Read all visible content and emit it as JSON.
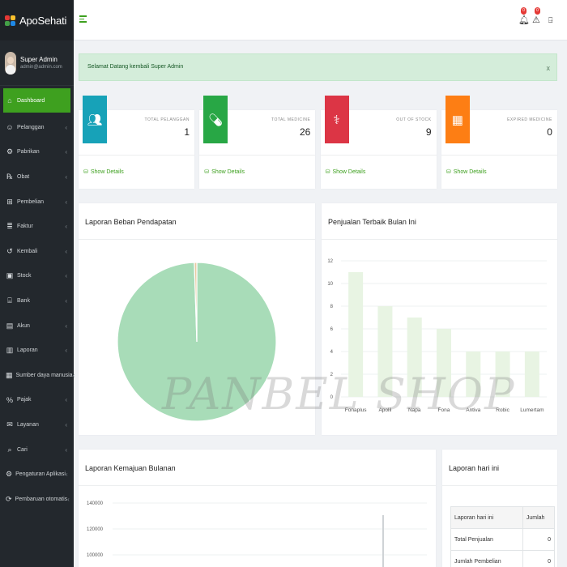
{
  "brand": {
    "name": "ApoSehati"
  },
  "user": {
    "name": "Super Admin",
    "email": "admin@admin.com"
  },
  "nav": [
    {
      "label": "Dashboard",
      "icon": "home-icon",
      "glyph": "⌂",
      "active": true
    },
    {
      "label": "Pelanggan",
      "icon": "person-icon",
      "glyph": "☺"
    },
    {
      "label": "Pabrikan",
      "icon": "factory-icon",
      "glyph": "⚙"
    },
    {
      "label": "Obat",
      "icon": "pill-icon",
      "glyph": "℞"
    },
    {
      "label": "Pembelian",
      "icon": "cart-icon",
      "glyph": "⊞"
    },
    {
      "label": "Faktur",
      "icon": "invoice-icon",
      "glyph": "≣"
    },
    {
      "label": "Kembali",
      "icon": "return-icon",
      "glyph": "↺"
    },
    {
      "label": "Stock",
      "icon": "box-icon",
      "glyph": "▣"
    },
    {
      "label": "Bank",
      "icon": "bank-icon",
      "glyph": "⌸"
    },
    {
      "label": "Akun",
      "icon": "account-icon",
      "glyph": "▤"
    },
    {
      "label": "Laporan",
      "icon": "book-icon",
      "glyph": "▥"
    },
    {
      "label": "Sumber daya manusia",
      "icon": "hr-icon",
      "glyph": "▦"
    },
    {
      "label": "Pajak",
      "icon": "tax-icon",
      "glyph": "%"
    },
    {
      "label": "Layanan",
      "icon": "service-icon",
      "glyph": "✉"
    },
    {
      "label": "Cari",
      "icon": "search-icon",
      "glyph": "⌕"
    },
    {
      "label": "Pengaturan Aplikasi",
      "icon": "gear-icon",
      "glyph": "⚙"
    },
    {
      "label": "Pembaruan otomatis",
      "icon": "update-icon",
      "glyph": "⟳"
    }
  ],
  "topbar": {
    "notif_count_1": "0",
    "notif_count_2": "0"
  },
  "alert": {
    "text": "Selamat Datang kembali Super Admin",
    "close": "x"
  },
  "stats": [
    {
      "label": "TOTAL PELANGGAN",
      "value": "1",
      "link": "Show Details",
      "color": "#17a2b8",
      "icon": "users-icon"
    },
    {
      "label": "TOTAL MEDICINE",
      "value": "26",
      "link": "Show Details",
      "color": "#28a745",
      "icon": "pills-icon"
    },
    {
      "label": "OUT OF STOCK",
      "value": "9",
      "link": "Show Details",
      "color": "#dc3545",
      "icon": "medkit-icon"
    },
    {
      "label": "EXPIRED MEDICINE",
      "value": "0",
      "link": "Show Details",
      "color": "#fd7e14",
      "icon": "calendar-icon"
    }
  ],
  "panels": {
    "pie_title": "Laporan Beban Pendapatan",
    "bar_title": "Penjualan Terbaik Bulan Ini",
    "line_title": "Laporan Kemajuan Bulanan",
    "today_title": "Laporan hari ini"
  },
  "today_table": {
    "head": [
      "Laporan hari ini",
      "Jumlah"
    ],
    "rows": [
      [
        "Total Penjualan",
        "0"
      ],
      [
        "Jumlah Pembelian",
        "0"
      ]
    ]
  },
  "watermark": "PANBEL SHOP",
  "chart_data": [
    {
      "type": "pie",
      "values": [
        99.5,
        0.5
      ],
      "colors": [
        "#a8dcb8",
        "#e8c9a0"
      ]
    },
    {
      "type": "bar",
      "categories": [
        "Fonaplus",
        "Apolil",
        "Napa",
        "Fona",
        "Antiva",
        "Robic",
        "Lumertam"
      ],
      "values": [
        11,
        8,
        7,
        6,
        4,
        4,
        4
      ],
      "ylim": [
        0,
        12
      ],
      "yticks": [
        0,
        2,
        4,
        6,
        8,
        10,
        12
      ],
      "bar_color": "#e8f4e3"
    },
    {
      "type": "line",
      "ytick_labels": [
        "140000",
        "120000",
        "100000"
      ]
    }
  ]
}
